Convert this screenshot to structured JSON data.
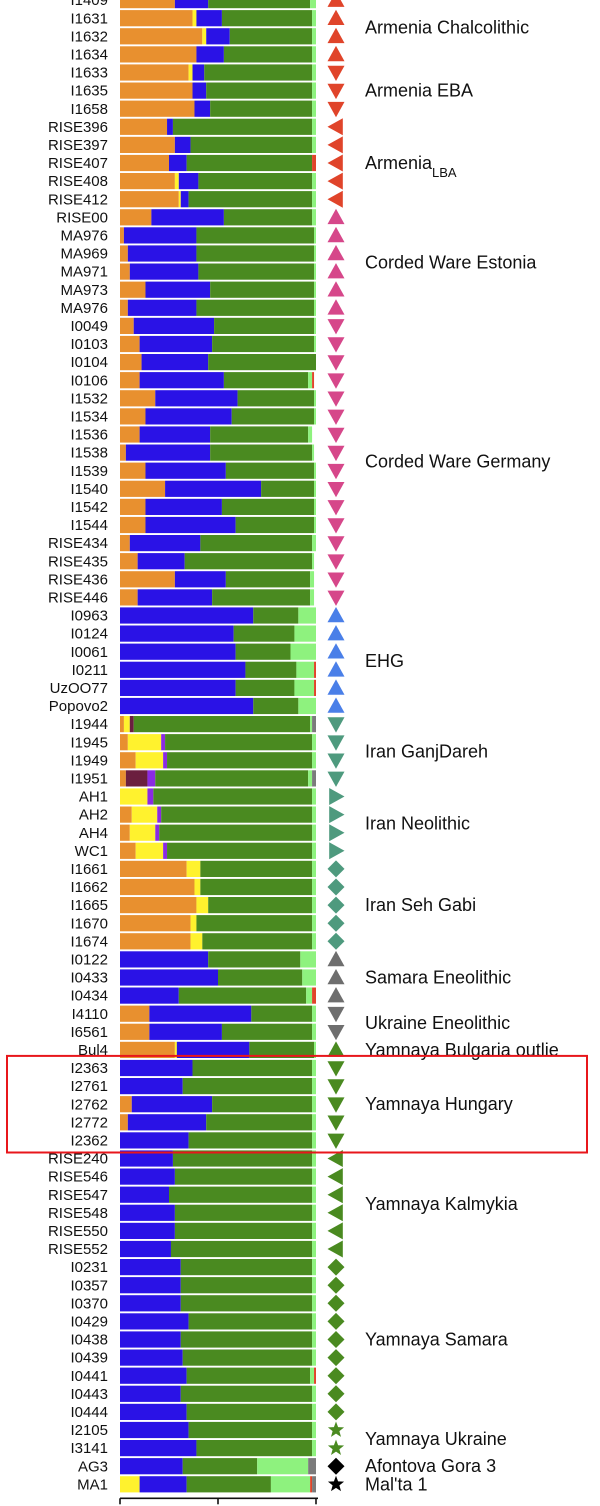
{
  "chart_data": {
    "type": "bar",
    "orientation": "horizontal",
    "stacked": true,
    "x_ticks": [
      "0",
      "0.5",
      "1.0"
    ],
    "xlim": [
      0,
      1
    ],
    "component_colors": [
      "#E8902F",
      "#FFF22E",
      "#6B1F3F",
      "#8A2BE2",
      "#2A12E6",
      "#4A8A20",
      "#8EF27E",
      "#E0442A",
      "#7B7B7B"
    ],
    "rows": [
      {
        "id": "I1409",
        "values": [
          0.28,
          0.0,
          0.0,
          0.0,
          0.17,
          0.52,
          0.03
        ]
      },
      {
        "id": "I1631",
        "values": [
          0.37,
          0.02,
          0.0,
          0.0,
          0.13,
          0.46,
          0.02
        ]
      },
      {
        "id": "I1632",
        "values": [
          0.42,
          0.02,
          0.0,
          0.0,
          0.12,
          0.42,
          0.02
        ]
      },
      {
        "id": "I1634",
        "values": [
          0.39,
          0.0,
          0.0,
          0.0,
          0.14,
          0.45,
          0.02
        ]
      },
      {
        "id": "I1633",
        "values": [
          0.35,
          0.02,
          0.0,
          0.0,
          0.06,
          0.55,
          0.02
        ]
      },
      {
        "id": "I1635",
        "values": [
          0.37,
          0.0,
          0.0,
          0.0,
          0.07,
          0.54,
          0.02
        ]
      },
      {
        "id": "I1658",
        "values": [
          0.38,
          0.0,
          0.0,
          0.0,
          0.08,
          0.52,
          0.02
        ]
      },
      {
        "id": "RISE396",
        "values": [
          0.24,
          0.0,
          0.0,
          0.0,
          0.03,
          0.71,
          0.02
        ]
      },
      {
        "id": "RISE397",
        "values": [
          0.28,
          0.0,
          0.0,
          0.0,
          0.08,
          0.62,
          0.02
        ]
      },
      {
        "id": "RISE407",
        "values": [
          0.25,
          0.0,
          0.0,
          0.0,
          0.09,
          0.64,
          0.0,
          0.02
        ]
      },
      {
        "id": "RISE408",
        "values": [
          0.28,
          0.02,
          0.0,
          0.0,
          0.1,
          0.58,
          0.02
        ]
      },
      {
        "id": "RISE412",
        "values": [
          0.3,
          0.01,
          0.0,
          0.0,
          0.04,
          0.63,
          0.02
        ]
      },
      {
        "id": "RISE00",
        "values": [
          0.16,
          0.0,
          0.0,
          0.0,
          0.37,
          0.45,
          0.02
        ]
      },
      {
        "id": "MA976",
        "values": [
          0.02,
          0.0,
          0.0,
          0.0,
          0.37,
          0.6,
          0.01
        ]
      },
      {
        "id": "MA969",
        "values": [
          0.04,
          0.0,
          0.0,
          0.0,
          0.35,
          0.6,
          0.01
        ]
      },
      {
        "id": "MA971",
        "values": [
          0.05,
          0.0,
          0.0,
          0.0,
          0.35,
          0.59,
          0.01
        ]
      },
      {
        "id": "MA973",
        "values": [
          0.13,
          0.0,
          0.0,
          0.0,
          0.33,
          0.53,
          0.01
        ]
      },
      {
        "id": "MA976",
        "values": [
          0.04,
          0.0,
          0.0,
          0.0,
          0.35,
          0.6,
          0.01
        ]
      },
      {
        "id": "I0049",
        "values": [
          0.07,
          0.0,
          0.0,
          0.0,
          0.41,
          0.51,
          0.01
        ]
      },
      {
        "id": "I0103",
        "values": [
          0.1,
          0.0,
          0.0,
          0.0,
          0.37,
          0.52,
          0.01
        ]
      },
      {
        "id": "I0104",
        "values": [
          0.11,
          0.0,
          0.0,
          0.0,
          0.34,
          0.55,
          0.0
        ]
      },
      {
        "id": "I0106",
        "values": [
          0.1,
          0.0,
          0.0,
          0.0,
          0.43,
          0.43,
          0.02,
          0.01
        ]
      },
      {
        "id": "I1532",
        "values": [
          0.18,
          0.0,
          0.0,
          0.0,
          0.42,
          0.39,
          0.01
        ]
      },
      {
        "id": "I1534",
        "values": [
          0.13,
          0.0,
          0.0,
          0.0,
          0.44,
          0.42,
          0.01
        ]
      },
      {
        "id": "I1536",
        "values": [
          0.1,
          0.0,
          0.0,
          0.0,
          0.36,
          0.5,
          0.02
        ]
      },
      {
        "id": "I1538",
        "values": [
          0.03,
          0.0,
          0.0,
          0.0,
          0.43,
          0.52,
          0.01
        ]
      },
      {
        "id": "I1539",
        "values": [
          0.13,
          0.0,
          0.0,
          0.0,
          0.41,
          0.45,
          0.01
        ]
      },
      {
        "id": "I1540",
        "values": [
          0.23,
          0.0,
          0.0,
          0.0,
          0.49,
          0.27,
          0.01
        ]
      },
      {
        "id": "I1542",
        "values": [
          0.13,
          0.0,
          0.0,
          0.0,
          0.39,
          0.47,
          0.01
        ]
      },
      {
        "id": "I1544",
        "values": [
          0.13,
          0.0,
          0.0,
          0.0,
          0.46,
          0.4,
          0.01
        ]
      },
      {
        "id": "RISE434",
        "values": [
          0.05,
          0.0,
          0.0,
          0.0,
          0.36,
          0.57,
          0.02
        ]
      },
      {
        "id": "RISE435",
        "values": [
          0.09,
          0.0,
          0.0,
          0.0,
          0.24,
          0.65,
          0.01
        ]
      },
      {
        "id": "RISE436",
        "values": [
          0.28,
          0.0,
          0.0,
          0.0,
          0.26,
          0.43,
          0.02
        ]
      },
      {
        "id": "RISE446",
        "values": [
          0.09,
          0.0,
          0.0,
          0.0,
          0.38,
          0.5,
          0.02
        ]
      },
      {
        "id": "I0963",
        "values": [
          0.0,
          0.0,
          0.0,
          0.0,
          0.68,
          0.23,
          0.09
        ]
      },
      {
        "id": "I0124",
        "values": [
          0.0,
          0.0,
          0.0,
          0.0,
          0.58,
          0.31,
          0.11
        ]
      },
      {
        "id": "I0061",
        "values": [
          0.0,
          0.0,
          0.0,
          0.0,
          0.59,
          0.28,
          0.13
        ]
      },
      {
        "id": "I0211",
        "values": [
          0.0,
          0.0,
          0.0,
          0.0,
          0.64,
          0.26,
          0.09,
          0.01
        ]
      },
      {
        "id": "UzOO77",
        "values": [
          0.0,
          0.0,
          0.0,
          0.0,
          0.59,
          0.3,
          0.1,
          0.01
        ]
      },
      {
        "id": "Popovo2",
        "values": [
          0.0,
          0.0,
          0.0,
          0.0,
          0.68,
          0.23,
          0.09
        ]
      },
      {
        "id": "I1944",
        "values": [
          0.02,
          0.03,
          0.02,
          0.0,
          0.0,
          0.9,
          0.01,
          0.0,
          0.02
        ]
      },
      {
        "id": "I1945",
        "values": [
          0.04,
          0.17,
          0.0,
          0.02,
          0.0,
          0.75,
          0.02
        ]
      },
      {
        "id": "I1949",
        "values": [
          0.08,
          0.14,
          0.0,
          0.02,
          0.0,
          0.74,
          0.02
        ]
      },
      {
        "id": "I1951",
        "values": [
          0.03,
          0.0,
          0.11,
          0.04,
          0.0,
          0.78,
          0.02,
          0.0,
          0.02
        ]
      },
      {
        "id": "AH1",
        "values": [
          0.0,
          0.14,
          0.0,
          0.03,
          0.0,
          0.81,
          0.02
        ]
      },
      {
        "id": "AH2",
        "values": [
          0.06,
          0.13,
          0.0,
          0.02,
          0.0,
          0.77,
          0.02
        ]
      },
      {
        "id": "AH4",
        "values": [
          0.05,
          0.13,
          0.0,
          0.02,
          0.0,
          0.78,
          0.02
        ]
      },
      {
        "id": "WC1",
        "values": [
          0.08,
          0.14,
          0.0,
          0.02,
          0.0,
          0.74,
          0.02
        ]
      },
      {
        "id": "I1661",
        "values": [
          0.34,
          0.07,
          0.0,
          0.0,
          0.0,
          0.57,
          0.02
        ]
      },
      {
        "id": "I1662",
        "values": [
          0.38,
          0.03,
          0.0,
          0.0,
          0.0,
          0.57,
          0.02
        ]
      },
      {
        "id": "I1665",
        "values": [
          0.39,
          0.06,
          0.0,
          0.0,
          0.0,
          0.53,
          0.02
        ]
      },
      {
        "id": "I1670",
        "values": [
          0.36,
          0.03,
          0.0,
          0.0,
          0.0,
          0.59,
          0.02
        ]
      },
      {
        "id": "I1674",
        "values": [
          0.36,
          0.06,
          0.0,
          0.0,
          0.0,
          0.56,
          0.02
        ]
      },
      {
        "id": "I0122",
        "values": [
          0.0,
          0.0,
          0.0,
          0.0,
          0.45,
          0.47,
          0.08
        ]
      },
      {
        "id": "I0433",
        "values": [
          0.0,
          0.0,
          0.0,
          0.0,
          0.5,
          0.43,
          0.07
        ]
      },
      {
        "id": "I0434",
        "values": [
          0.0,
          0.0,
          0.0,
          0.0,
          0.3,
          0.65,
          0.03,
          0.02
        ]
      },
      {
        "id": "I4110",
        "values": [
          0.15,
          0.0,
          0.0,
          0.0,
          0.52,
          0.31,
          0.02
        ]
      },
      {
        "id": "I6561",
        "values": [
          0.15,
          0.0,
          0.0,
          0.0,
          0.37,
          0.46,
          0.02
        ]
      },
      {
        "id": "Bul4",
        "values": [
          0.28,
          0.01,
          0.0,
          0.0,
          0.37,
          0.33,
          0.01
        ]
      },
      {
        "id": "I2363",
        "values": [
          0.0,
          0.0,
          0.0,
          0.0,
          0.37,
          0.61,
          0.02
        ]
      },
      {
        "id": "I2761",
        "values": [
          0.0,
          0.0,
          0.0,
          0.0,
          0.32,
          0.66,
          0.02
        ]
      },
      {
        "id": "I2762",
        "values": [
          0.06,
          0.0,
          0.0,
          0.0,
          0.41,
          0.51,
          0.02
        ]
      },
      {
        "id": "I2772",
        "values": [
          0.04,
          0.0,
          0.0,
          0.0,
          0.4,
          0.54,
          0.02
        ]
      },
      {
        "id": "I2362",
        "values": [
          0.0,
          0.0,
          0.0,
          0.0,
          0.35,
          0.63,
          0.02
        ]
      },
      {
        "id": "RISE240",
        "values": [
          0.0,
          0.0,
          0.0,
          0.0,
          0.27,
          0.71,
          0.02
        ]
      },
      {
        "id": "RISE546",
        "values": [
          0.0,
          0.0,
          0.0,
          0.0,
          0.28,
          0.7,
          0.02
        ]
      },
      {
        "id": "RISE547",
        "values": [
          0.0,
          0.0,
          0.0,
          0.0,
          0.25,
          0.73,
          0.02
        ]
      },
      {
        "id": "RISE548",
        "values": [
          0.0,
          0.0,
          0.0,
          0.0,
          0.28,
          0.7,
          0.02
        ]
      },
      {
        "id": "RISE550",
        "values": [
          0.0,
          0.0,
          0.0,
          0.0,
          0.28,
          0.7,
          0.02
        ]
      },
      {
        "id": "RISE552",
        "values": [
          0.0,
          0.0,
          0.0,
          0.0,
          0.26,
          0.72,
          0.02
        ]
      },
      {
        "id": "I0231",
        "values": [
          0.0,
          0.0,
          0.0,
          0.0,
          0.31,
          0.67,
          0.02
        ]
      },
      {
        "id": "I0357",
        "values": [
          0.0,
          0.0,
          0.0,
          0.0,
          0.31,
          0.67,
          0.02
        ]
      },
      {
        "id": "I0370",
        "values": [
          0.0,
          0.0,
          0.0,
          0.0,
          0.31,
          0.67,
          0.02
        ]
      },
      {
        "id": "I0429",
        "values": [
          0.0,
          0.0,
          0.0,
          0.0,
          0.35,
          0.63,
          0.02
        ]
      },
      {
        "id": "I0438",
        "values": [
          0.0,
          0.0,
          0.0,
          0.0,
          0.31,
          0.67,
          0.02
        ]
      },
      {
        "id": "I0439",
        "values": [
          0.0,
          0.0,
          0.0,
          0.0,
          0.32,
          0.66,
          0.02
        ]
      },
      {
        "id": "I0441",
        "values": [
          0.0,
          0.0,
          0.0,
          0.0,
          0.34,
          0.63,
          0.02,
          0.01
        ]
      },
      {
        "id": "I0443",
        "values": [
          0.0,
          0.0,
          0.0,
          0.0,
          0.31,
          0.67,
          0.02
        ]
      },
      {
        "id": "I0444",
        "values": [
          0.0,
          0.0,
          0.0,
          0.0,
          0.34,
          0.64,
          0.02
        ]
      },
      {
        "id": "I2105",
        "values": [
          0.0,
          0.0,
          0.0,
          0.0,
          0.35,
          0.63,
          0.02
        ]
      },
      {
        "id": "I3141",
        "values": [
          0.0,
          0.0,
          0.0,
          0.0,
          0.39,
          0.59,
          0.02
        ]
      },
      {
        "id": "AG3",
        "values": [
          0.0,
          0.0,
          0.0,
          0.0,
          0.32,
          0.38,
          0.26,
          0.0,
          0.04
        ]
      },
      {
        "id": "MA1",
        "values": [
          0.0,
          0.1,
          0.0,
          0.0,
          0.24,
          0.43,
          0.2,
          0.01,
          0.02
        ]
      }
    ],
    "groups": [
      {
        "label": "Armenia Chalcolithic",
        "label_sub": "",
        "start": 0,
        "end": 3,
        "marker": "triangle-up",
        "color": "#E0442A"
      },
      {
        "label": "Armenia EBA",
        "label_sub": "",
        "start": 4,
        "end": 6,
        "marker": "triangle-down",
        "color": "#E0442A"
      },
      {
        "label": "Armenia",
        "label_sub": "LBA",
        "start": 7,
        "end": 11,
        "marker": "triangle-left",
        "color": "#E0442A"
      },
      {
        "label": "Corded Ware Estonia",
        "label_sub": "",
        "start": 12,
        "end": 17,
        "marker": "triangle-up",
        "color": "#D6478A"
      },
      {
        "label": "Corded Ware Germany",
        "label_sub": "",
        "start": 18,
        "end": 33,
        "marker": "triangle-down",
        "color": "#D6478A"
      },
      {
        "label": "EHG",
        "label_sub": "",
        "start": 34,
        "end": 39,
        "marker": "triangle-up",
        "color": "#4A7FE8"
      },
      {
        "label": "Iran GanjDareh",
        "label_sub": "",
        "start": 40,
        "end": 43,
        "marker": "triangle-down",
        "color": "#4E9A7E"
      },
      {
        "label": "Iran Neolithic",
        "label_sub": "",
        "start": 44,
        "end": 47,
        "marker": "triangle-right",
        "color": "#4E9A7E"
      },
      {
        "label": "Iran Seh Gabi",
        "label_sub": "",
        "start": 48,
        "end": 52,
        "marker": "diamond",
        "color": "#4E9A7E"
      },
      {
        "label": "Samara Eneolithic",
        "label_sub": "",
        "start": 53,
        "end": 55,
        "marker": "triangle-up",
        "color": "#6E6E6E"
      },
      {
        "label": "Ukraine Eneolithic",
        "label_sub": "",
        "start": 56,
        "end": 57,
        "marker": "triangle-down",
        "color": "#6E6E6E"
      },
      {
        "label": "Yamnaya Bulgaria outlie",
        "label_sub": "",
        "start": 58,
        "end": 58,
        "marker": "triangle-up",
        "color": "#4A8A20"
      },
      {
        "label": "Yamnaya Hungary",
        "label_sub": "",
        "start": 59,
        "end": 63,
        "marker": "triangle-down",
        "color": "#4A8A20"
      },
      {
        "label": "Yamnaya Kalmykia",
        "label_sub": "",
        "start": 64,
        "end": 69,
        "marker": "triangle-left",
        "color": "#4A8A20"
      },
      {
        "label": "Yamnaya Samara",
        "label_sub": "",
        "start": 70,
        "end": 78,
        "marker": "diamond",
        "color": "#4A8A20"
      },
      {
        "label": "Yamnaya Ukraine",
        "label_sub": "",
        "start": 79,
        "end": 80,
        "marker": "star",
        "color": "#4A8A20"
      },
      {
        "label": "Afontova Gora 3",
        "label_sub": "",
        "start": 81,
        "end": 81,
        "marker": "diamond",
        "color": "#000000"
      },
      {
        "label": "Mal'ta 1",
        "label_sub": "",
        "start": 82,
        "end": 82,
        "marker": "star",
        "color": "#000000"
      }
    ],
    "highlight": {
      "start": 59,
      "end": 63,
      "color": "#E8161B"
    }
  }
}
